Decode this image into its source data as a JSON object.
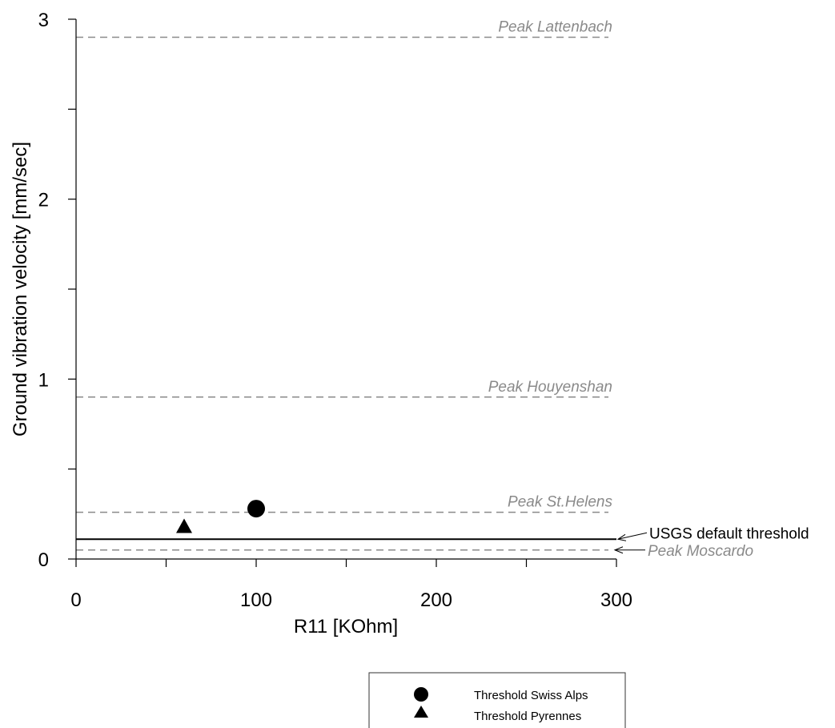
{
  "chart_data": {
    "type": "scatter",
    "xlabel": "R11 [KOhm]",
    "ylabel": "Ground vibration velocity [mm/sec]",
    "xlim": [
      0,
      300
    ],
    "ylim": [
      0,
      3
    ],
    "x_ticks": [
      "0",
      "100",
      "200",
      "300"
    ],
    "y_ticks": [
      "0",
      "1",
      "2",
      "3"
    ],
    "grid": false,
    "legend_position": "bottom-center",
    "series": [
      {
        "name": "Threshold Swiss Alps",
        "marker": "circle",
        "x": [
          100
        ],
        "y": [
          0.28
        ]
      },
      {
        "name": "Threshold Pyrennes",
        "marker": "triangle",
        "x": [
          60
        ],
        "y": [
          0.18
        ]
      }
    ],
    "reference_lines": [
      {
        "label": "Peak Lattenbach",
        "y": 2.9,
        "style": "dashed",
        "color": "#8a8a8a"
      },
      {
        "label": "Peak Houyenshan",
        "y": 0.9,
        "style": "dashed",
        "color": "#8a8a8a"
      },
      {
        "label": "Peak St.Helens",
        "y": 0.26,
        "style": "dashed",
        "color": "#8a8a8a"
      },
      {
        "label": "Peak Moscardo",
        "y": 0.05,
        "style": "dashed",
        "color": "#8a8a8a"
      },
      {
        "label": "USGS default threshold",
        "y": 0.11,
        "style": "solid",
        "color": "#000000"
      }
    ]
  }
}
